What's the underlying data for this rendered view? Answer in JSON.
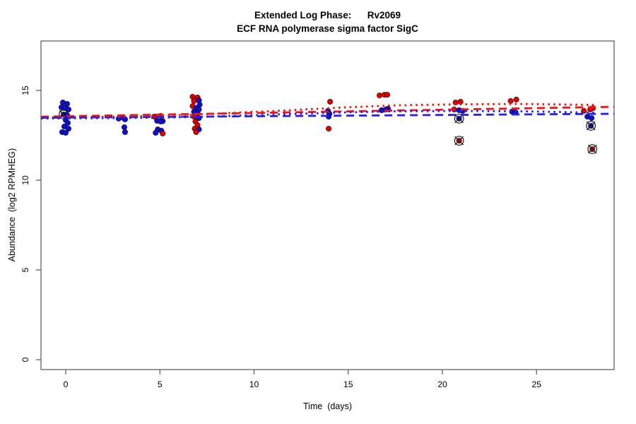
{
  "chart_data": {
    "type": "scatter",
    "title": "Extended Log Phase:      Rv2069",
    "subtitle": "ECF RNA polymerase sigma factor SigC",
    "xlabel": "Time  (days)",
    "ylabel": "Abundance  (log2 RPMHEG)",
    "x_ticks": [
      0,
      5,
      10,
      15,
      20,
      25
    ],
    "y_ticks": [
      0,
      5,
      10,
      15
    ],
    "xlim": [
      -1.31,
      29.12
    ],
    "ylim": [
      -0.55,
      17.76
    ],
    "grid": false,
    "legend": "none",
    "colors": {
      "red_point": "#E00000",
      "blue_point": "#0F0FD0",
      "red_line": "#F01515",
      "blue_line": "#2121E8",
      "outlier_ring": "#1A1A1A",
      "axis": "#555555",
      "text": "#000000"
    },
    "points_schema": [
      "day",
      "value",
      "series(r=red,b=blue)",
      "jitter_px",
      "outlier_circled(0/1)"
    ],
    "points": [
      [
        0,
        14.33,
        "b",
        -4,
        0
      ],
      [
        0,
        14.25,
        "b",
        2,
        0
      ],
      [
        0,
        14.06,
        "b",
        -6,
        0
      ],
      [
        0,
        14.02,
        "b",
        -1,
        0
      ],
      [
        0,
        13.94,
        "b",
        4,
        0
      ],
      [
        0,
        13.66,
        "b",
        -3,
        1
      ],
      [
        0,
        13.62,
        "b",
        2,
        0
      ],
      [
        0,
        13.35,
        "b",
        0,
        0
      ],
      [
        0,
        13.19,
        "b",
        3,
        0
      ],
      [
        0,
        12.99,
        "b",
        -2,
        0
      ],
      [
        0,
        12.87,
        "b",
        4,
        0
      ],
      [
        0,
        12.68,
        "b",
        -5,
        0
      ],
      [
        0,
        12.64,
        "b",
        0,
        0
      ],
      [
        3,
        13.46,
        "r",
        2,
        0
      ],
      [
        3,
        13.43,
        "b",
        -5,
        0
      ],
      [
        3,
        13.39,
        "b",
        4,
        0
      ],
      [
        3,
        12.95,
        "b",
        3,
        0
      ],
      [
        3,
        12.68,
        "b",
        4,
        0
      ],
      [
        5,
        13.58,
        "r",
        1,
        0
      ],
      [
        5,
        13.54,
        "r",
        -8,
        0
      ],
      [
        5,
        13.31,
        "b",
        -4,
        0
      ],
      [
        5,
        13.29,
        "b",
        4,
        0
      ],
      [
        5,
        13.27,
        "b",
        1,
        0
      ],
      [
        5,
        12.83,
        "b",
        -3,
        0
      ],
      [
        5,
        12.76,
        "b",
        2,
        0
      ],
      [
        5,
        12.64,
        "b",
        -6,
        0
      ],
      [
        5,
        12.6,
        "r",
        4,
        0
      ],
      [
        7,
        14.65,
        "r",
        -7,
        0
      ],
      [
        7,
        14.61,
        "r",
        0,
        0
      ],
      [
        7,
        14.45,
        "b",
        2,
        0
      ],
      [
        7,
        14.41,
        "r",
        -5,
        0
      ],
      [
        7,
        14.21,
        "b",
        3,
        0
      ],
      [
        7,
        14.13,
        "r",
        -7,
        0
      ],
      [
        7,
        14.02,
        "b",
        -2,
        0
      ],
      [
        7,
        13.94,
        "b",
        2,
        0
      ],
      [
        7,
        13.82,
        "b",
        -5,
        0
      ],
      [
        7,
        13.74,
        "b",
        0,
        0
      ],
      [
        7,
        13.54,
        "r",
        -5,
        0
      ],
      [
        7,
        13.46,
        "b",
        2,
        0
      ],
      [
        7,
        13.27,
        "r",
        -3,
        0
      ],
      [
        7,
        13.07,
        "r",
        0,
        0
      ],
      [
        7,
        12.87,
        "r",
        -4,
        0
      ],
      [
        7,
        12.83,
        "b",
        2,
        0
      ],
      [
        7,
        12.68,
        "r",
        -2,
        0
      ],
      [
        14,
        14.37,
        "r",
        1,
        0
      ],
      [
        14,
        13.86,
        "b",
        -2,
        0
      ],
      [
        14,
        13.7,
        "b",
        0,
        0
      ],
      [
        14,
        13.54,
        "b",
        -1,
        0
      ],
      [
        14,
        12.87,
        "r",
        -1,
        0
      ],
      [
        17,
        14.76,
        "r",
        -2,
        0
      ],
      [
        17,
        14.76,
        "r",
        2,
        0
      ],
      [
        17,
        14.72,
        "r",
        -9,
        0
      ],
      [
        17,
        13.98,
        "b",
        3,
        0
      ],
      [
        17,
        13.94,
        "b",
        0,
        0
      ],
      [
        17,
        13.9,
        "b",
        -6,
        0
      ],
      [
        21,
        14.37,
        "r",
        -1,
        0
      ],
      [
        21,
        14.33,
        "r",
        -8,
        0
      ],
      [
        21,
        13.94,
        "r",
        -10,
        0
      ],
      [
        21,
        13.9,
        "b",
        -3,
        0
      ],
      [
        21,
        13.86,
        "b",
        2,
        0
      ],
      [
        21,
        13.43,
        "b",
        -3,
        1
      ],
      [
        21,
        12.2,
        "r",
        -3,
        1
      ],
      [
        24,
        14.49,
        "r",
        -2,
        0
      ],
      [
        24,
        14.41,
        "r",
        -10,
        0
      ],
      [
        24,
        13.82,
        "b",
        -8,
        0
      ],
      [
        24,
        13.78,
        "b",
        -3,
        0
      ],
      [
        28,
        14.02,
        "r",
        0,
        0
      ],
      [
        28,
        13.94,
        "r",
        -4,
        0
      ],
      [
        28,
        13.86,
        "r",
        -13,
        0
      ],
      [
        28,
        13.54,
        "b",
        -8,
        0
      ],
      [
        28,
        13.46,
        "b",
        -2,
        0
      ],
      [
        28,
        13.03,
        "b",
        -3,
        1
      ],
      [
        28,
        11.73,
        "r",
        -1,
        1
      ]
    ],
    "trend_lines": [
      {
        "series": "red",
        "style": "dashed",
        "points": [
          [
            -1.31,
            13.54
          ],
          [
            29.12,
            14.09
          ]
        ]
      },
      {
        "series": "blue",
        "style": "dashed",
        "points": [
          [
            -1.31,
            13.48
          ],
          [
            29.12,
            13.7
          ]
        ]
      },
      {
        "series": "red",
        "style": "dotted",
        "points": [
          [
            -1.31,
            13.5
          ],
          [
            3.1,
            13.54
          ],
          [
            7.0,
            13.66
          ],
          [
            11.1,
            13.86
          ],
          [
            14.9,
            14.06
          ],
          [
            17.5,
            14.17
          ],
          [
            20.9,
            14.23
          ],
          [
            24.3,
            14.25
          ],
          [
            28.2,
            14.19
          ]
        ]
      },
      {
        "series": "blue",
        "style": "dotted",
        "points": [
          [
            -1.31,
            13.44
          ],
          [
            3.1,
            13.46
          ],
          [
            7.0,
            13.52
          ],
          [
            11.1,
            13.66
          ],
          [
            14.9,
            13.78
          ],
          [
            17.5,
            13.84
          ],
          [
            20.9,
            13.86
          ],
          [
            24.3,
            13.84
          ],
          [
            28.2,
            13.76
          ]
        ]
      }
    ]
  }
}
